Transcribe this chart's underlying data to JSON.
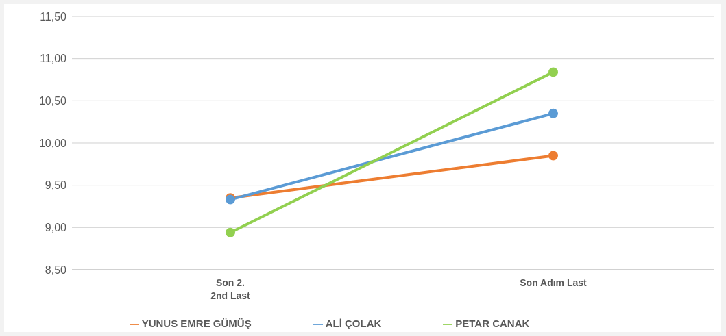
{
  "chart_data": {
    "type": "line",
    "categories": [
      "Son 2.\n2nd Last",
      "Son Adım Last"
    ],
    "series": [
      {
        "name": "YUNUS EMRE GÜMÜŞ",
        "color": "#ed7d31",
        "values": [
          9.35,
          9.85
        ]
      },
      {
        "name": "ALİ ÇOLAK",
        "color": "#5b9bd5",
        "values": [
          9.33,
          10.35
        ]
      },
      {
        "name": "PETAR CANAK",
        "color": "#92d050",
        "values": [
          8.94,
          10.84
        ]
      }
    ],
    "ylim": [
      8.5,
      11.5
    ],
    "yticks": [
      {
        "value": 8.5,
        "label": "8,50"
      },
      {
        "value": 9,
        "label": "9,00"
      },
      {
        "value": 9.5,
        "label": "9,50"
      },
      {
        "value": 10,
        "label": "10,00"
      },
      {
        "value": 10.5,
        "label": "10,50"
      },
      {
        "value": 11,
        "label": "11,00"
      },
      {
        "value": 11.5,
        "label": "11,50"
      }
    ],
    "grid": "y",
    "legend": "bottom",
    "marker": "circle",
    "line_style": "solid"
  }
}
